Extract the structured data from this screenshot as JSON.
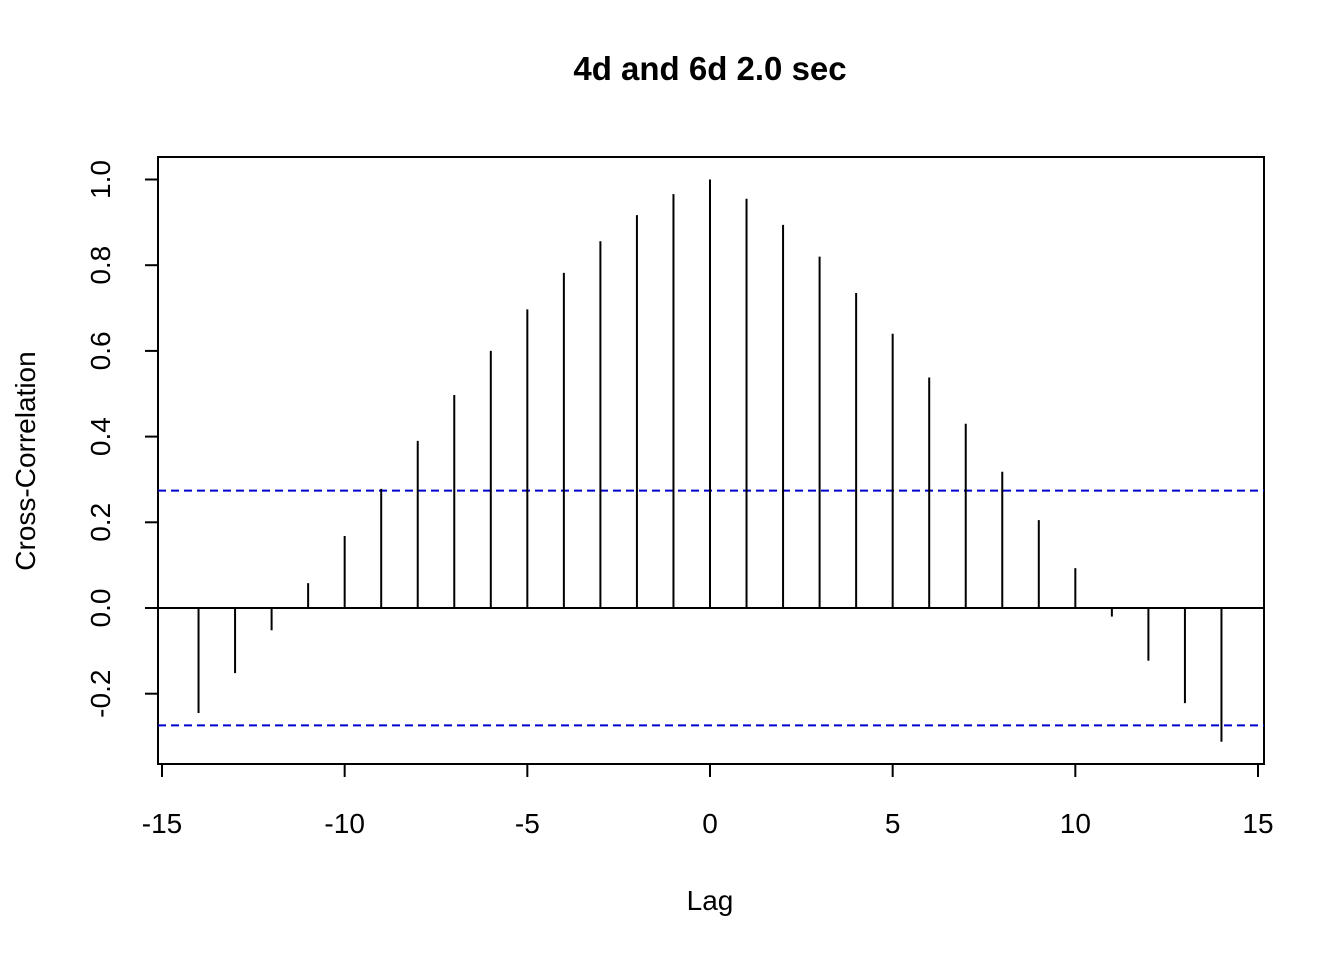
{
  "chart_data": {
    "type": "bar",
    "title": "4d and 6d 2.0 sec",
    "xlabel": "Lag",
    "ylabel": "Cross-Correlation",
    "xlim": [
      -15,
      15
    ],
    "ylim": [
      -0.3,
      1.0
    ],
    "xticks": [
      "-15",
      "-10",
      "-5",
      "0",
      "5",
      "10",
      "15"
    ],
    "yticks": [
      "-0.2",
      "0.0",
      "0.2",
      "0.4",
      "0.6",
      "0.8",
      "1.0"
    ],
    "x": [
      -14,
      -13,
      -12,
      -11,
      -10,
      -9,
      -8,
      -7,
      -6,
      -5,
      -4,
      -3,
      -2,
      -1,
      0,
      1,
      2,
      3,
      4,
      5,
      6,
      7,
      8,
      9,
      10,
      11,
      12,
      13,
      14
    ],
    "values": [
      -0.245,
      -0.152,
      -0.052,
      0.058,
      0.168,
      0.278,
      0.39,
      0.497,
      0.6,
      0.697,
      0.782,
      0.856,
      0.917,
      0.966,
      1.0,
      0.955,
      0.894,
      0.82,
      0.735,
      0.64,
      0.538,
      0.43,
      0.318,
      0.205,
      0.093,
      -0.02,
      -0.123,
      -0.222,
      -0.312
    ],
    "confidence_bounds": [
      0.274,
      -0.274
    ],
    "colors": {
      "bars": "#000000",
      "zero_line": "#000000",
      "confidence": "#0000CC"
    }
  }
}
